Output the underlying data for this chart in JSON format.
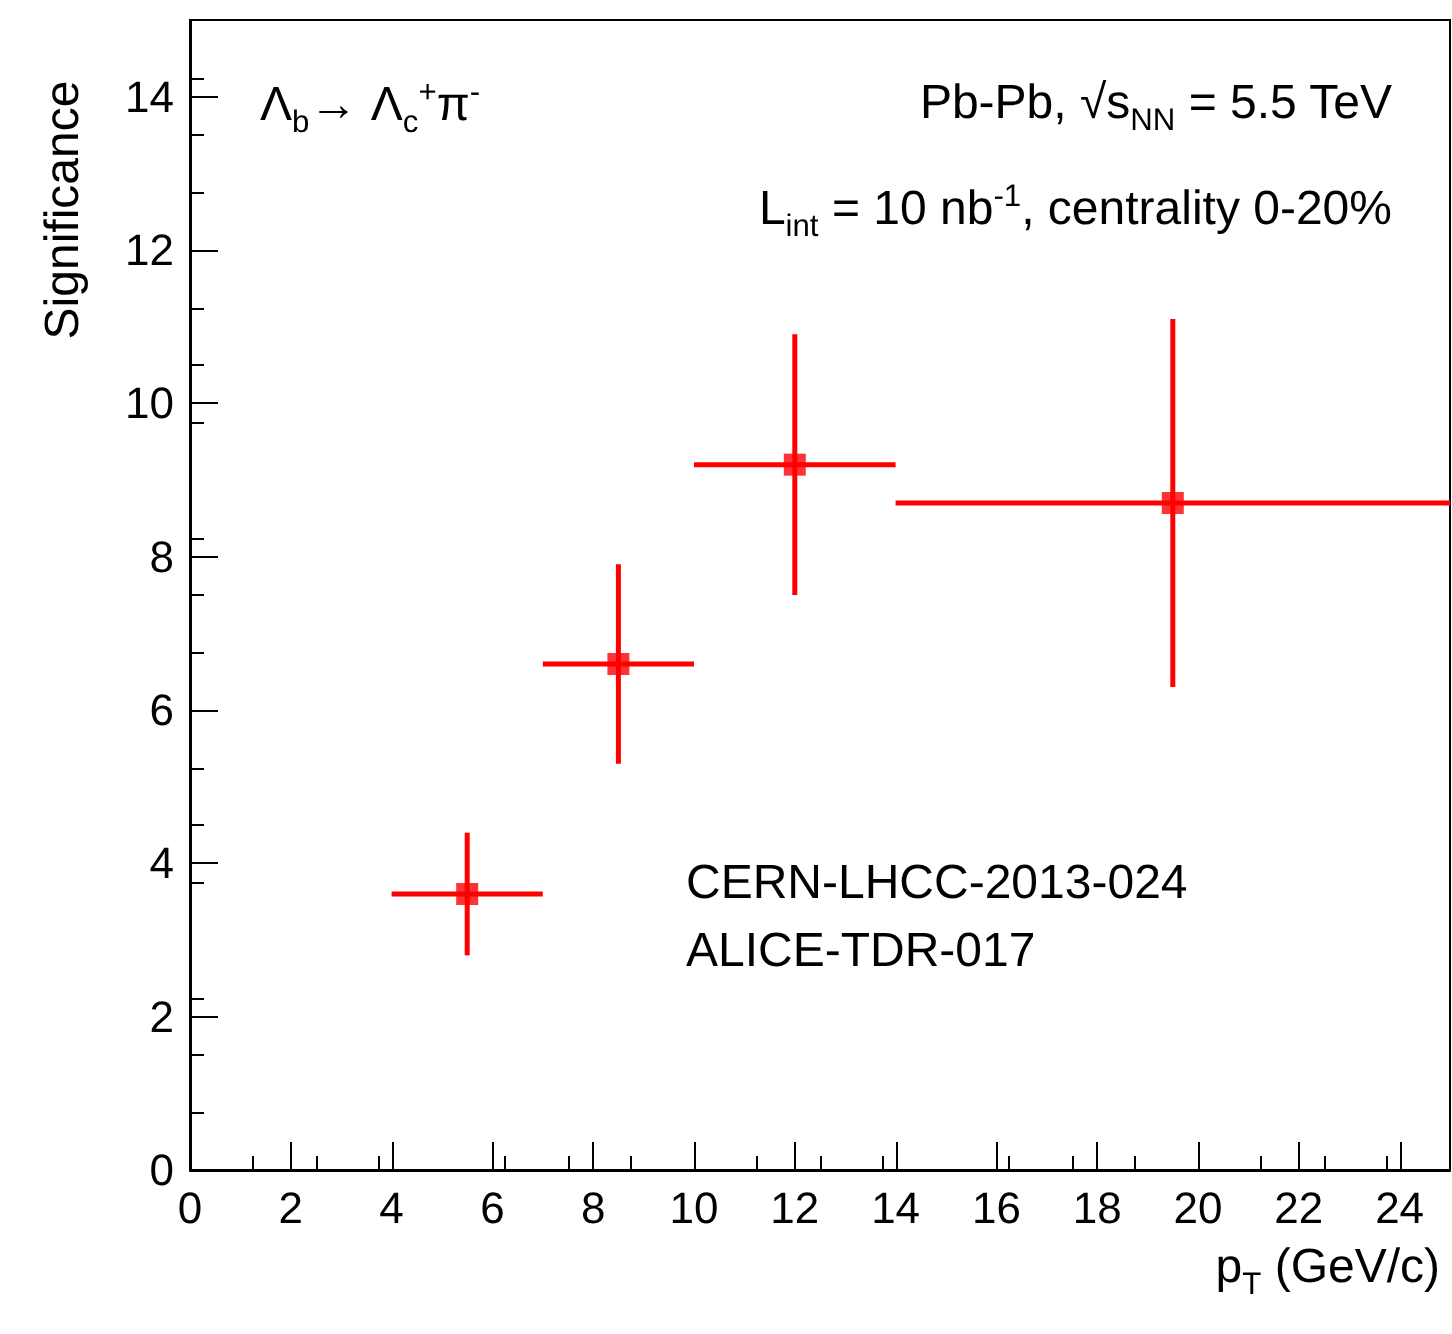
{
  "chart_data": {
    "type": "scatter",
    "xlabel": "p$_{T}$ (GeV/c)",
    "ylabel": "Significance",
    "x": [
      5.5,
      8.5,
      12,
      19.5
    ],
    "series": [
      {
        "color": "#ff0000",
        "values": [
          3.6,
          6.6,
          9.2,
          8.7
        ],
        "errors": [
          [
            2.8,
            4.4
          ],
          [
            5.3,
            7.9
          ],
          [
            7.5,
            10.9
          ],
          [
            6.3,
            11.1
          ]
        ],
        "xerrors": [
          [
            4,
            7
          ],
          [
            7,
            10
          ],
          [
            10,
            14
          ],
          [
            14,
            25
          ]
        ]
      }
    ],
    "marker": "square",
    "xlim": [
      0,
      25
    ],
    "ylim": [
      0,
      15
    ],
    "xticks": [
      0,
      2,
      4,
      6,
      8,
      10,
      12,
      14,
      16,
      18,
      20,
      22,
      24
    ],
    "yticks": [
      0,
      2,
      4,
      6,
      8,
      10,
      12,
      14
    ],
    "grid": false,
    "annotations": [
      "Λ$_{b}$→ Λ$_{c}$$^{+}$π$^{-}$",
      "Pb-Pb, √s$_{NN}$ = 5.5 TeV",
      "L$_{int}$ = 10 nb$^{-1}$, centrality 0-20%",
      "CERN-LHCC-2013-024",
      "ALICE-TDR-017"
    ]
  }
}
